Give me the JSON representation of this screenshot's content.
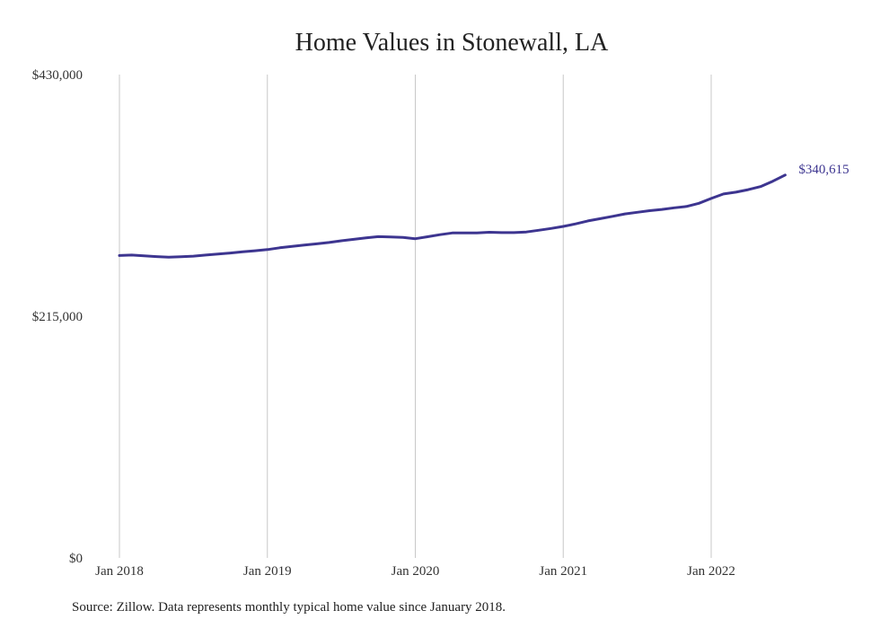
{
  "chart_data": {
    "type": "line",
    "title": "Home Values in Stonewall, LA",
    "source": "Source: Zillow. Data represents monthly typical home value since January 2018.",
    "ylim": [
      0,
      430000
    ],
    "yticks": [
      {
        "value": 0,
        "label": "$0"
      },
      {
        "value": 215000,
        "label": "$215,000"
      },
      {
        "value": 430000,
        "label": "$430,000"
      }
    ],
    "xticks": [
      {
        "value": "2018-01",
        "label": "Jan 2018"
      },
      {
        "value": "2019-01",
        "label": "Jan 2019"
      },
      {
        "value": "2020-01",
        "label": "Jan 2020"
      },
      {
        "value": "2021-01",
        "label": "Jan 2021"
      },
      {
        "value": "2022-01",
        "label": "Jan 2022"
      }
    ],
    "grid": "vertical",
    "series": [
      {
        "color": "#3d3590",
        "end_label": "$340,615",
        "x": [
          "2018-01",
          "2018-02",
          "2018-03",
          "2018-04",
          "2018-05",
          "2018-06",
          "2018-07",
          "2018-08",
          "2018-09",
          "2018-10",
          "2018-11",
          "2018-12",
          "2019-01",
          "2019-02",
          "2019-03",
          "2019-04",
          "2019-05",
          "2019-06",
          "2019-07",
          "2019-08",
          "2019-09",
          "2019-10",
          "2019-11",
          "2019-12",
          "2020-01",
          "2020-02",
          "2020-03",
          "2020-04",
          "2020-05",
          "2020-06",
          "2020-07",
          "2020-08",
          "2020-09",
          "2020-10",
          "2020-11",
          "2020-12",
          "2021-01",
          "2021-02",
          "2021-03",
          "2021-04",
          "2021-05",
          "2021-06",
          "2021-07",
          "2021-08",
          "2021-09",
          "2021-10",
          "2021-11",
          "2021-12",
          "2022-01",
          "2022-02",
          "2022-03",
          "2022-04",
          "2022-05",
          "2022-06",
          "2022-07"
        ],
        "values": [
          269000,
          269400,
          268800,
          268100,
          267600,
          268000,
          268500,
          269400,
          270300,
          271300,
          272300,
          273300,
          274300,
          275900,
          277100,
          278300,
          279400,
          280600,
          282100,
          283400,
          284700,
          285800,
          285500,
          285100,
          284000,
          285700,
          287600,
          289100,
          289100,
          289200,
          289700,
          289400,
          289400,
          290000,
          291500,
          293100,
          294900,
          297200,
          299800,
          301800,
          303900,
          306000,
          307500,
          308900,
          310000,
          311500,
          312700,
          315500,
          319800,
          323800,
          325400,
          327600,
          330300,
          335100,
          340615
        ]
      }
    ]
  }
}
